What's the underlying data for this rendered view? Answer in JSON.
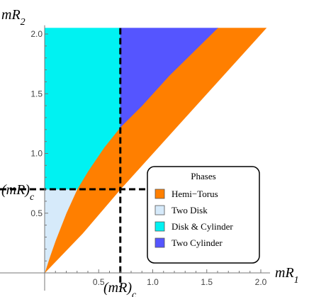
{
  "chart_data": {
    "type": "area",
    "title": "",
    "xlabel_main": "mR",
    "xlabel_sub": "1",
    "ylabel_main": "mR",
    "ylabel_sub": "2",
    "xlim": [
      0,
      2.05
    ],
    "ylim": [
      0,
      2.05
    ],
    "x_ticks": [
      0.5,
      1.0,
      1.5,
      2.0
    ],
    "x_tick_labels": [
      "0.5",
      "1.0",
      "1.5",
      "2.0"
    ],
    "y_ticks": [
      0.5,
      1.0,
      1.5,
      2.0
    ],
    "y_tick_labels": [
      "0.5",
      "1.0",
      "1.5",
      "2.0"
    ],
    "critical_value": 0.7,
    "critical_label_main": "(mR)",
    "critical_label_sub": "c",
    "legend_title": "Phases",
    "legend_position": "bottom-right",
    "series": [
      {
        "name": "Hemi-Torus",
        "label": "Hemi−Torus",
        "color": "#FF7F00",
        "polygon": [
          [
            0,
            0
          ],
          [
            0.35,
            0.33
          ],
          [
            0.7,
            0.7
          ],
          [
            1.2,
            1.2
          ],
          [
            1.6,
            1.6
          ],
          [
            2.0,
            2.0
          ],
          [
            2.05,
            2.05
          ],
          [
            1.6,
            2.05
          ],
          [
            1.15,
            1.65
          ],
          [
            0.9,
            1.4
          ],
          [
            0.7,
            1.22
          ],
          [
            0.55,
            1.05
          ],
          [
            0.4,
            0.85
          ],
          [
            0.3,
            0.7
          ],
          [
            0.2,
            0.5
          ],
          [
            0.1,
            0.27
          ],
          [
            0.05,
            0.14
          ]
        ]
      },
      {
        "name": "Two Disk",
        "label": "Two Disk",
        "color": "#D6EAFA",
        "polygon": [
          [
            0,
            0
          ],
          [
            0,
            0.7
          ],
          [
            0.3,
            0.7
          ],
          [
            0.2,
            0.5
          ],
          [
            0.1,
            0.27
          ],
          [
            0.05,
            0.14
          ]
        ]
      },
      {
        "name": "Disk & Cylinder",
        "label": "Disk & Cylinder",
        "color": "#00F2F2",
        "polygon": [
          [
            0,
            0.7
          ],
          [
            0,
            2.05
          ],
          [
            0.7,
            2.05
          ],
          [
            0.7,
            1.22
          ],
          [
            0.55,
            1.05
          ],
          [
            0.4,
            0.85
          ],
          [
            0.3,
            0.7
          ]
        ]
      },
      {
        "name": "Two Cylinder",
        "label": "Two Cylinder",
        "color": "#5555FF",
        "polygon": [
          [
            0.7,
            1.22
          ],
          [
            0.7,
            2.05
          ],
          [
            1.6,
            2.05
          ],
          [
            1.15,
            1.65
          ],
          [
            0.9,
            1.4
          ]
        ]
      }
    ]
  }
}
